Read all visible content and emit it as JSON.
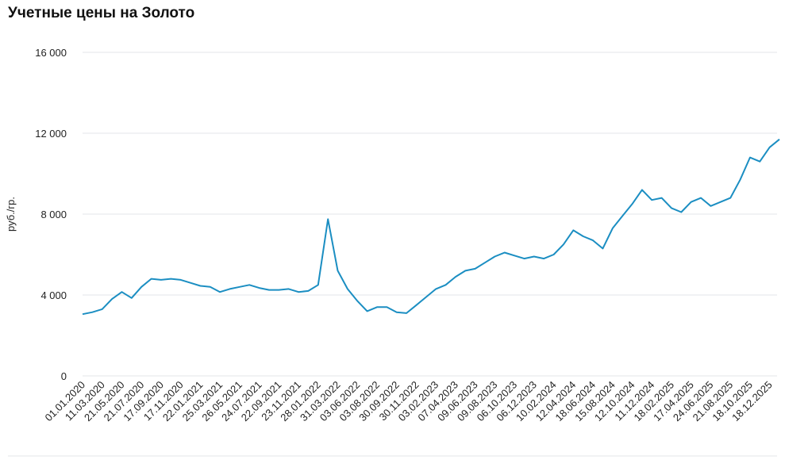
{
  "chart_data": {
    "type": "line",
    "title": "Учетные цены на Золото",
    "y_label": "руб./гр.",
    "categories": [
      "01.01.2020",
      null,
      "11.03.2020",
      null,
      "21.05.2020",
      null,
      "21.07.2020",
      null,
      "17.09.2020",
      null,
      "17.11.2020",
      null,
      "22.01.2021",
      null,
      "25.03.2021",
      null,
      "26.05.2021",
      null,
      "24.07.2021",
      null,
      "22.09.2021",
      null,
      "23.11.2021",
      null,
      "28.01.2022",
      null,
      "31.03.2022",
      null,
      "03.06.2022",
      null,
      "03.08.2022",
      null,
      "30.09.2022",
      null,
      "30.11.2022",
      null,
      "03.02.2023",
      null,
      "07.04.2023",
      null,
      "09.06.2023",
      null,
      "09.08.2023",
      null,
      "06.10.2023",
      null,
      "06.12.2023",
      null,
      "10.02.2024",
      null,
      "12.04.2024",
      null,
      "18.06.2024",
      null,
      "15.08.2024",
      null,
      "12.10.2024",
      null,
      "11.12.2024",
      null,
      "18.02.2025",
      null,
      "17.04.2025",
      null,
      "24.06.2025",
      null,
      "21.08.2025",
      null,
      "18.10.2025",
      null,
      "18.12.2025",
      null
    ],
    "values": [
      3050,
      3150,
      3300,
      3800,
      4150,
      3850,
      4400,
      4800,
      4750,
      4800,
      4750,
      4600,
      4450,
      4400,
      4150,
      4300,
      4400,
      4500,
      4350,
      4250,
      4250,
      4300,
      4150,
      4200,
      4500,
      7750,
      5200,
      4300,
      3700,
      3200,
      3400,
      3400,
      3150,
      3100,
      3500,
      3900,
      4300,
      4500,
      4900,
      5200,
      5300,
      5600,
      5900,
      6100,
      5950,
      5800,
      5900,
      5800,
      6000,
      6500,
      7200,
      6900,
      6700,
      6300,
      7300,
      7900,
      8500,
      9200,
      8700,
      8800,
      8300,
      8100,
      8600,
      8800,
      8400,
      8600,
      8800,
      9700,
      10800,
      10600,
      11300,
      11700
    ],
    "color": "#1b8ec2",
    "ylim": [
      0,
      16000
    ],
    "yticks": [
      0,
      {
        "value": 4000,
        "label": "4 000"
      },
      {
        "value": 8000,
        "label": "8 000"
      },
      {
        "value": 12000,
        "label": "12 000"
      },
      {
        "value": 16000,
        "label": "16 000"
      }
    ],
    "grid": true
  }
}
